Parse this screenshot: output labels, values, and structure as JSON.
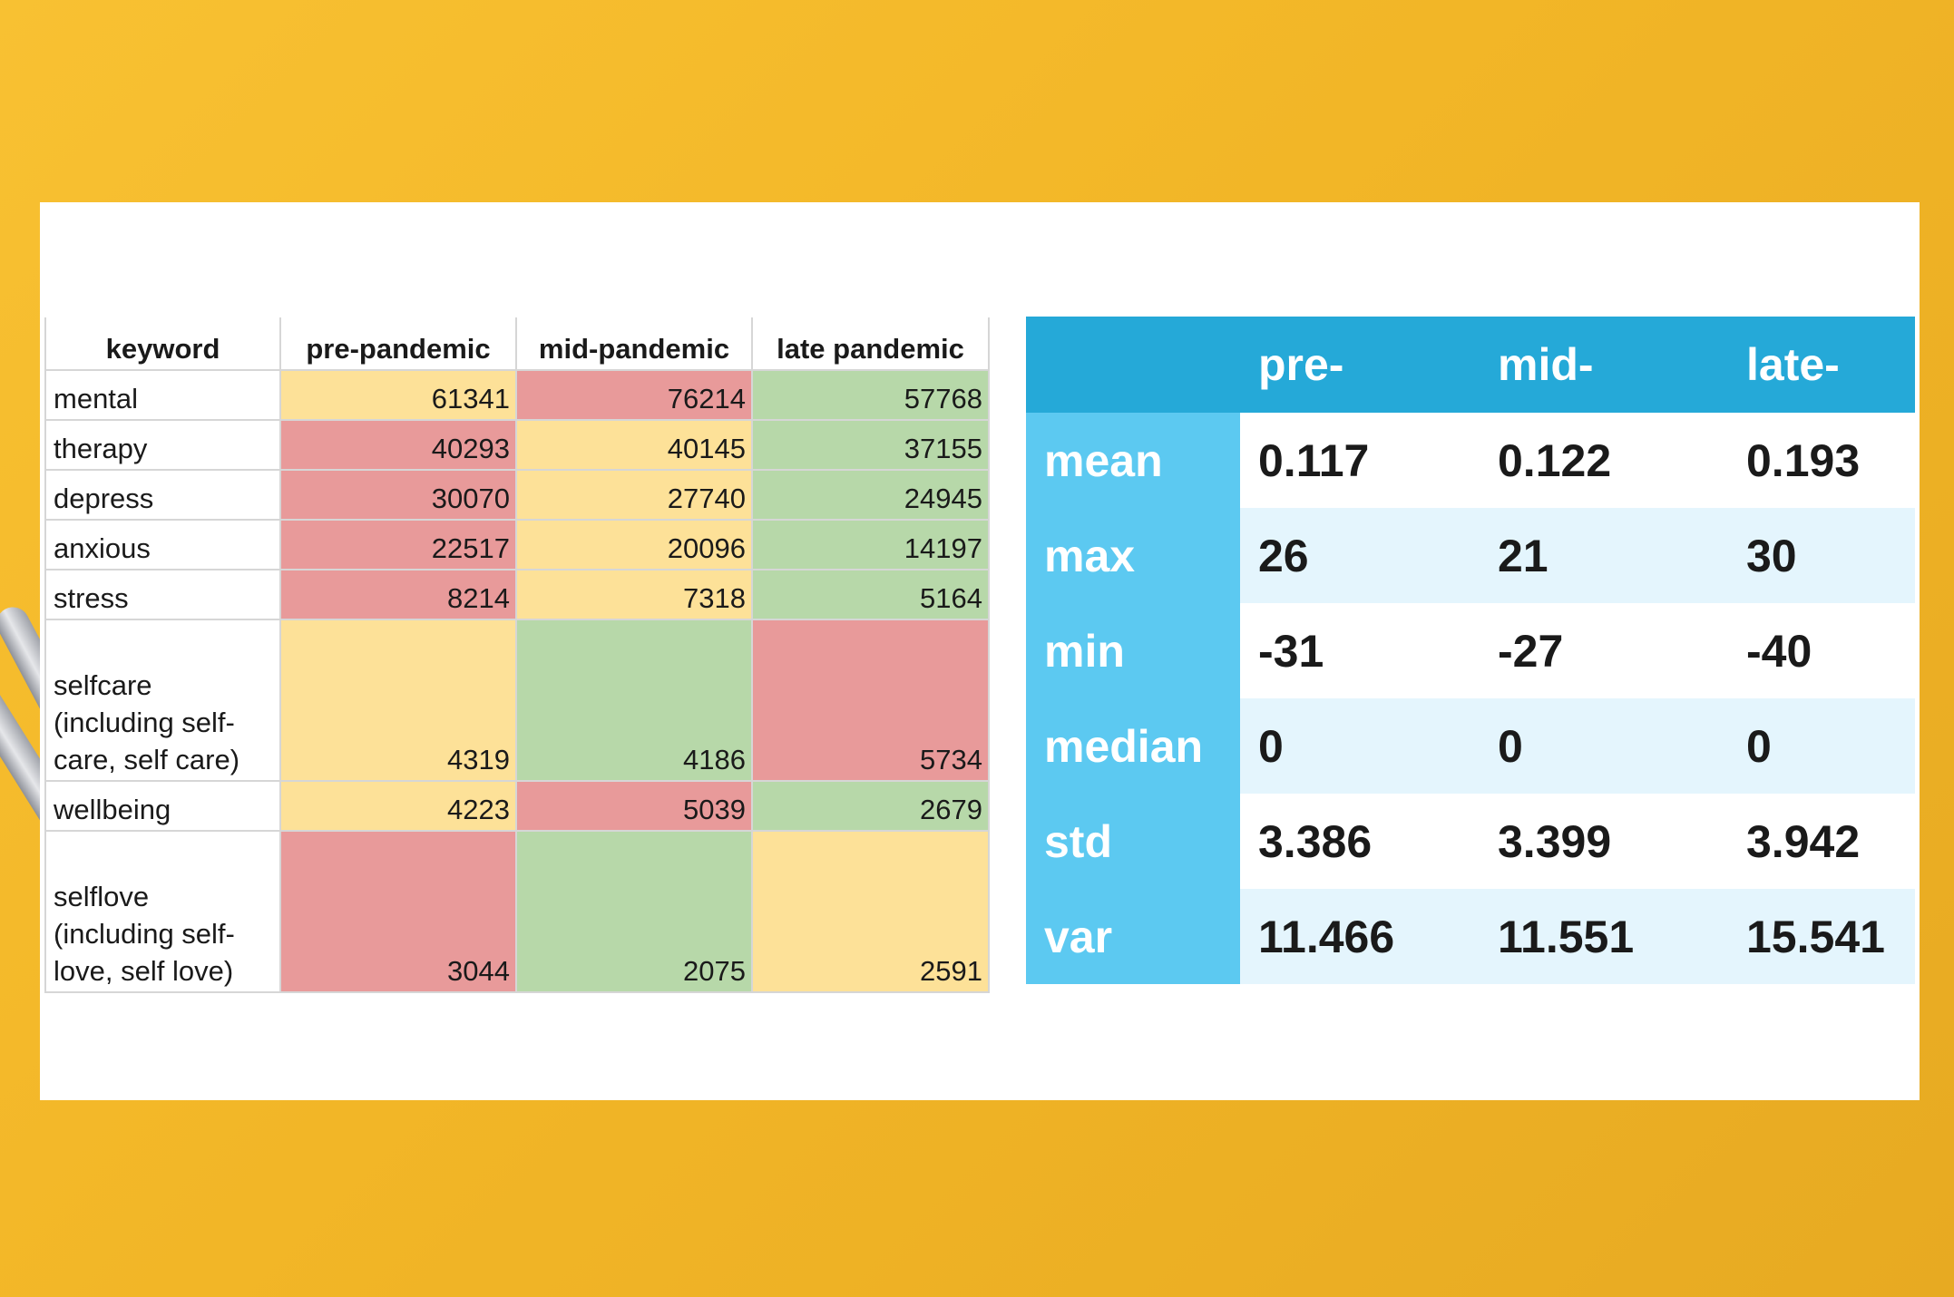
{
  "keyword_table": {
    "headers": [
      "keyword",
      "pre-pandemic",
      "mid-pandemic",
      "late pandemic"
    ],
    "rows": [
      {
        "keyword": "mental",
        "values": [
          "61341",
          "76214",
          "57768"
        ],
        "colors": [
          "yellow",
          "red",
          "green"
        ]
      },
      {
        "keyword": "therapy",
        "values": [
          "40293",
          "40145",
          "37155"
        ],
        "colors": [
          "red",
          "yellow",
          "green"
        ]
      },
      {
        "keyword": "depress",
        "values": [
          "30070",
          "27740",
          "24945"
        ],
        "colors": [
          "red",
          "yellow",
          "green"
        ]
      },
      {
        "keyword": "anxious",
        "values": [
          "22517",
          "20096",
          "14197"
        ],
        "colors": [
          "red",
          "yellow",
          "green"
        ]
      },
      {
        "keyword": "stress",
        "values": [
          "8214",
          "7318",
          "5164"
        ],
        "colors": [
          "red",
          "yellow",
          "green"
        ]
      },
      {
        "keyword": "selfcare (including self-care, self care)",
        "values": [
          "4319",
          "4186",
          "5734"
        ],
        "colors": [
          "yellow",
          "green",
          "red"
        ]
      },
      {
        "keyword": "wellbeing",
        "values": [
          "4223",
          "5039",
          "2679"
        ],
        "colors": [
          "yellow",
          "red",
          "green"
        ]
      },
      {
        "keyword": "selflove (including self-love, self love)",
        "values": [
          "3044",
          "2075",
          "2591"
        ],
        "colors": [
          "red",
          "green",
          "yellow"
        ]
      }
    ]
  },
  "stats_table": {
    "headers": [
      "",
      "pre-",
      "mid-",
      "late-"
    ],
    "rows": [
      {
        "label": "mean",
        "values": [
          "0.117",
          "0.122",
          "0.193"
        ]
      },
      {
        "label": "max",
        "values": [
          "26",
          "21",
          "30"
        ]
      },
      {
        "label": "min",
        "values": [
          "-31",
          "-27",
          "-40"
        ]
      },
      {
        "label": "median",
        "values": [
          "0",
          "0",
          "0"
        ]
      },
      {
        "label": "std",
        "values": [
          "3.386",
          "3.399",
          "3.942"
        ]
      },
      {
        "label": "var",
        "values": [
          "11.466",
          "11.551",
          "15.541"
        ]
      }
    ]
  },
  "colors": {
    "background": "#f2b627",
    "cell_yellow": "#fde198",
    "cell_red": "#e89a9a",
    "cell_green": "#b7d8a9",
    "stats_header": "#25a9d8",
    "stats_label": "#5cc9f1",
    "stats_stripe": "#e4f5fd"
  }
}
